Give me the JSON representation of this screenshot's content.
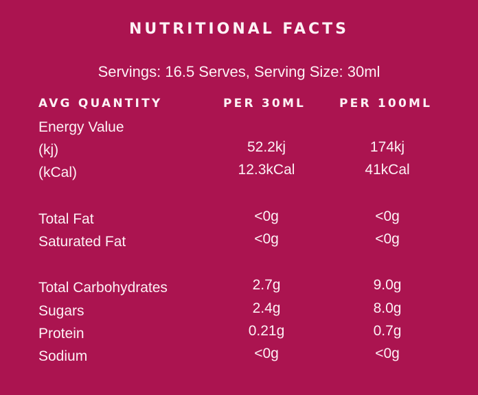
{
  "title": "NUTRITIONAL FACTS",
  "servings": "Servings: 16.5 Serves, Serving Size: 30ml",
  "header": {
    "label": "AVG QUANTITY",
    "col1": "PER 30ML",
    "col2": "PER 100ML"
  },
  "rows": [
    {
      "label": "Energy Value",
      "v1": "",
      "v2": ""
    },
    {
      "label": "(kj)",
      "v1": "52.2kj",
      "v2": "174kj"
    },
    {
      "label": "(kCal)",
      "v1": "12.3kCal",
      "v2": "41kCal"
    },
    {
      "label": "Total Fat",
      "v1": "<0g",
      "v2": "<0g"
    },
    {
      "label": "Saturated Fat",
      "v1": "<0g",
      "v2": "<0g"
    },
    {
      "label": "Total Carbohydrates",
      "v1": "2.7g",
      "v2": "9.0g"
    },
    {
      "label": "Sugars",
      "v1": "2.4g",
      "v2": "8.0g"
    },
    {
      "label": "Protein",
      "v1": "0.21g",
      "v2": "0.7g"
    },
    {
      "label": "Sodium",
      "v1": "<0g",
      "v2": "<0g"
    }
  ]
}
